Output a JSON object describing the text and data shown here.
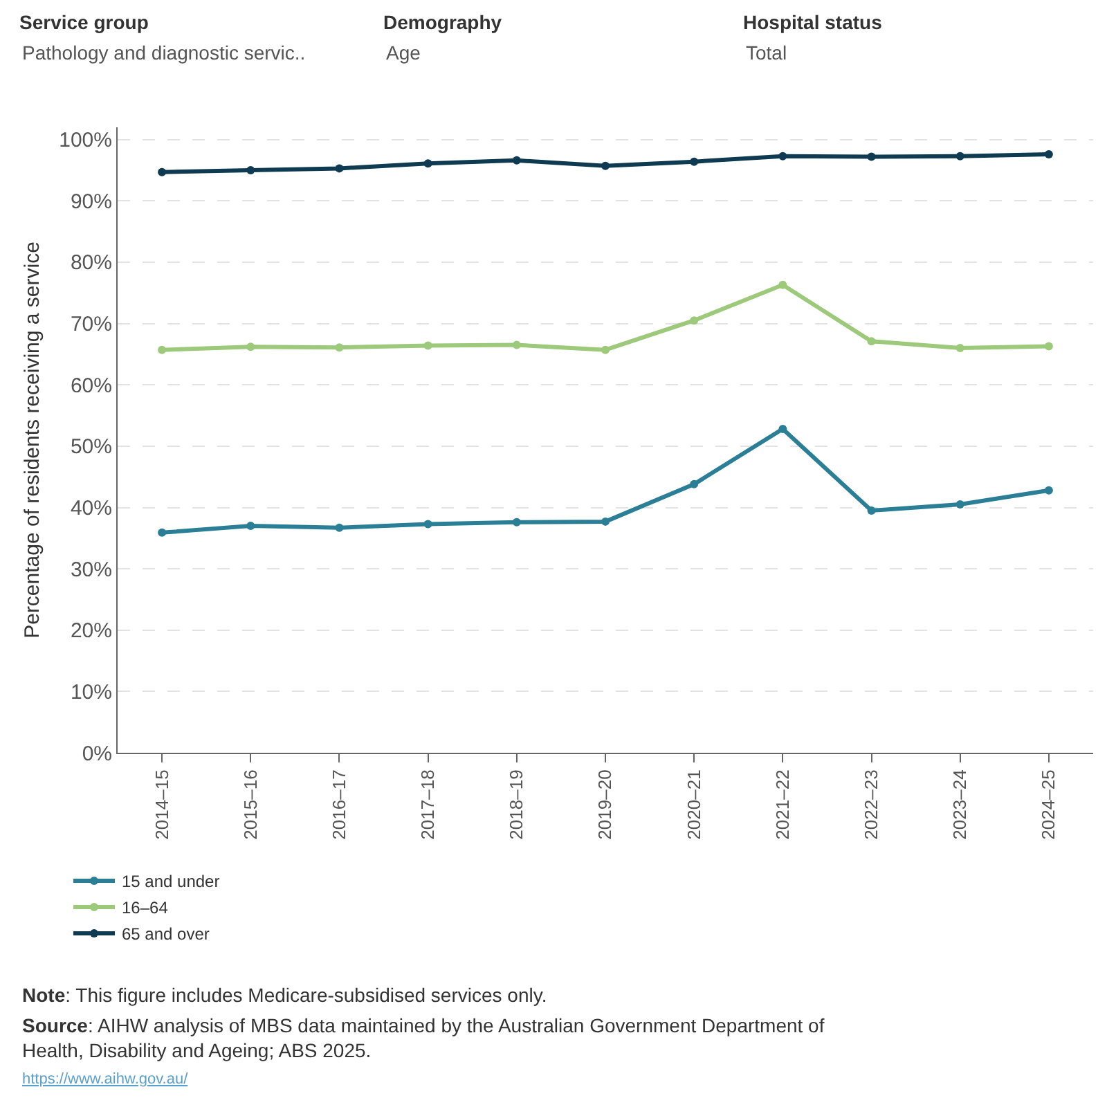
{
  "chart_data": {
    "type": "line",
    "ylabel": "Percentage of residents receiving a service",
    "categories": [
      "2014–15",
      "2015–16",
      "2016–17",
      "2017–18",
      "2018–19",
      "2019–20",
      "2020–21",
      "2021–22",
      "2022–23",
      "2023–24",
      "2024–25"
    ],
    "series": [
      {
        "name": "15 and under",
        "color": "#2a7f96",
        "values": [
          35.9,
          37.0,
          36.7,
          37.3,
          37.6,
          37.7,
          43.8,
          52.8,
          39.5,
          40.5,
          42.8
        ]
      },
      {
        "name": "16–64",
        "color": "#9cc97a",
        "values": [
          65.7,
          66.2,
          66.1,
          66.4,
          66.5,
          65.7,
          70.5,
          76.3,
          67.1,
          66.0,
          66.3
        ]
      },
      {
        "name": "65 and over",
        "color": "#0e3a52",
        "values": [
          94.7,
          95.0,
          95.3,
          96.1,
          96.6,
          95.7,
          96.4,
          97.3,
          97.2,
          97.3,
          97.6
        ]
      }
    ],
    "ylim": [
      0,
      102
    ],
    "yticks": [
      {
        "value": 0,
        "label": "0%"
      },
      {
        "value": 10,
        "label": "10%"
      },
      {
        "value": 20,
        "label": "20%"
      },
      {
        "value": 30,
        "label": "30%"
      },
      {
        "value": 40,
        "label": "40%"
      },
      {
        "value": 50,
        "label": "50%"
      },
      {
        "value": 60,
        "label": "60%"
      },
      {
        "value": 70,
        "label": "70%"
      },
      {
        "value": 80,
        "label": "80%"
      },
      {
        "value": 90,
        "label": "90%"
      },
      {
        "value": 100,
        "label": "100%"
      }
    ],
    "grid": "y",
    "legend": "bottom left",
    "marker": "circle",
    "line_style": "solid",
    "annotations": [
      "Service group",
      "Pathology and diagnostic servic..",
      "Demography",
      "Age",
      "Hospital status",
      "Total",
      "Note: This figure includes Medicare-subsidised services only.",
      "Source: AIHW analysis of MBS data maintained by the Australian Government Department of Health, Disability and Ageing; ABS 2025.",
      "https://www.aihw.gov.au/"
    ]
  }
}
